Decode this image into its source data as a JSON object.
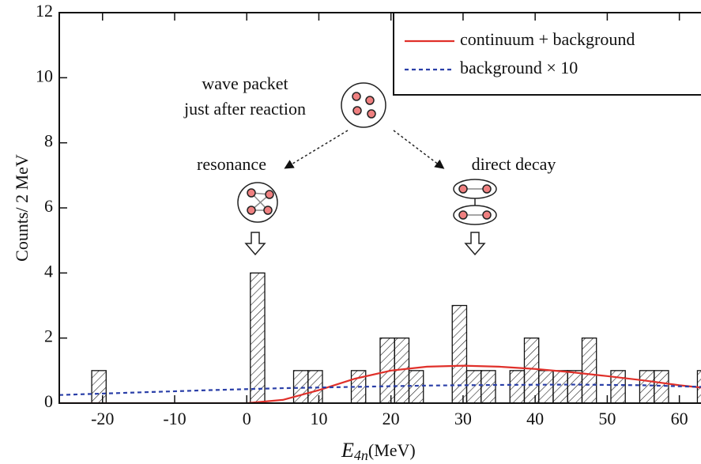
{
  "chart_data": {
    "type": "histogram",
    "y_label": "Counts/ 2 MeV",
    "x_label": {
      "symbol": "E",
      "subscript": "4n",
      "unit": "(MeV)"
    },
    "bins": [
      -21.5,
      -19.5,
      -17.5,
      -15.5,
      -13.5,
      -11.5,
      -9.5,
      -7.5,
      -5.5,
      -3.5,
      -1.5,
      0.5,
      2.5,
      4.5,
      6.5,
      8.5,
      10.5,
      12.5,
      14.5,
      16.5,
      18.5,
      20.5,
      22.5,
      24.5,
      26.5,
      28.5,
      30.5,
      32.5,
      34.5,
      36.5,
      38.5,
      40.5,
      42.5,
      44.5,
      46.5,
      48.5,
      50.5,
      52.5,
      54.5,
      56.5,
      58.5,
      60.5,
      62.5,
      64.5
    ],
    "counts": [
      1,
      0,
      0,
      0,
      0,
      0,
      0,
      0,
      0,
      0,
      0,
      4,
      0,
      0,
      1,
      1,
      0,
      0,
      1,
      0,
      2,
      2,
      1,
      0,
      0,
      3,
      1,
      1,
      0,
      1,
      2,
      1,
      1,
      1,
      2,
      0,
      1,
      0,
      1,
      1,
      0,
      0,
      1
    ],
    "series": [
      {
        "name": "continuum + background",
        "color": "#e0302a",
        "style": "solid",
        "x": [
          -26,
          0,
          5,
          10,
          15,
          20,
          25,
          30,
          35,
          40,
          45,
          50,
          55,
          60,
          63
        ],
        "values": [
          0,
          0,
          0.1,
          0.4,
          0.75,
          1.0,
          1.12,
          1.15,
          1.12,
          1.05,
          0.95,
          0.83,
          0.7,
          0.55,
          0.48
        ]
      },
      {
        "name": "background × 10",
        "color": "#2a3fa8",
        "style": "dashed",
        "x": [
          -26,
          -15,
          -5,
          5,
          15,
          25,
          35,
          45,
          55,
          63
        ],
        "values": [
          0.25,
          0.33,
          0.4,
          0.46,
          0.5,
          0.54,
          0.56,
          0.57,
          0.55,
          0.5
        ]
      }
    ],
    "xlim": [
      -26,
      63
    ],
    "ylim": [
      0,
      12
    ],
    "xticks": [
      -20,
      -10,
      0,
      10,
      20,
      30,
      40,
      50,
      60
    ],
    "yticks": [
      0,
      2,
      4,
      6,
      8,
      10,
      12
    ],
    "annotations": [
      "wave packet",
      "just after reaction",
      "resonance",
      "direct decay"
    ]
  }
}
